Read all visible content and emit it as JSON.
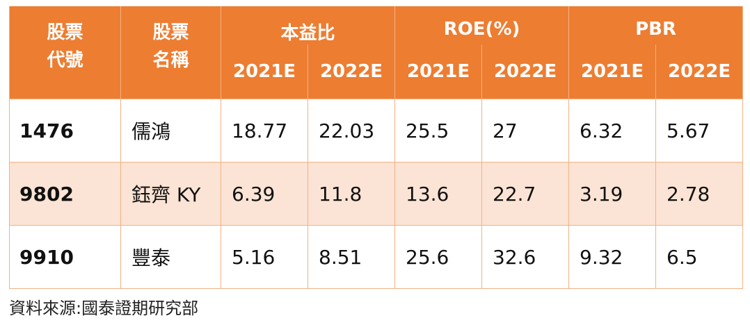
{
  "table": {
    "headers": {
      "stock_code": "股票\n代號",
      "stock_name": "股票\n名稱",
      "groups": [
        {
          "label": "本益比",
          "years": [
            "2021E",
            "2022E"
          ]
        },
        {
          "label": "ROE(%)",
          "years": [
            "2021E",
            "2022E"
          ]
        },
        {
          "label": "PBR",
          "years": [
            "2021E",
            "2022E"
          ]
        }
      ]
    },
    "rows": [
      {
        "code": "1476",
        "name": "儒鴻",
        "values": [
          "18.77",
          "22.03",
          "25.5",
          "27",
          "6.32",
          "5.67"
        ]
      },
      {
        "code": "9802",
        "name": "鈺齊 KY",
        "values": [
          "6.39",
          "11.8",
          "13.6",
          "22.7",
          "3.19",
          "2.78"
        ]
      },
      {
        "code": "9910",
        "name": "豐泰",
        "values": [
          "5.16",
          "8.51",
          "25.6",
          "32.6",
          "9.32",
          "6.5"
        ]
      }
    ],
    "colors": {
      "header_bg": "#ED7D31",
      "header_text": "#FFFFFF",
      "band_bg": "#FBE4D5",
      "border": "#F4B183"
    }
  },
  "source_note": "資料來源:國泰證期研究部"
}
